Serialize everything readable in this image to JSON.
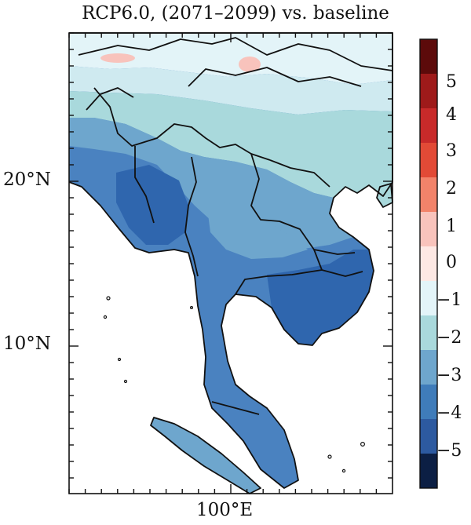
{
  "title": "RCP6.0, (2071–2099) vs. baseline",
  "axes": {
    "y_ticks": [
      "20°N",
      "10°N"
    ],
    "x_ticks": [
      "100°E"
    ]
  },
  "colorbar": {
    "labels": [
      "5",
      "4",
      "3",
      "2",
      "1",
      "0",
      "−1",
      "−2",
      "−3",
      "−4",
      "−5"
    ],
    "colors": [
      "#5c0a0a",
      "#9e1a1a",
      "#c82a2a",
      "#e24a36",
      "#f2836a",
      "#f8c3bc",
      "#fde8e4",
      "#e3f4f8",
      "#a9d9dc",
      "#6ea6cd",
      "#3f7cba",
      "#2d5aa0",
      "#0c1f44"
    ]
  },
  "map_colors": {
    "land_base": "#4a82c0",
    "band_dark": "#2f66ae",
    "band_mid": "#6ea6cd",
    "band_light": "#a9d9dc",
    "band_lighter": "#cfeaf0",
    "band_lightest": "#e3f4f8",
    "warm_patch": "#f8c3bc",
    "ocean": "#ffffff",
    "border": "#111111"
  }
}
